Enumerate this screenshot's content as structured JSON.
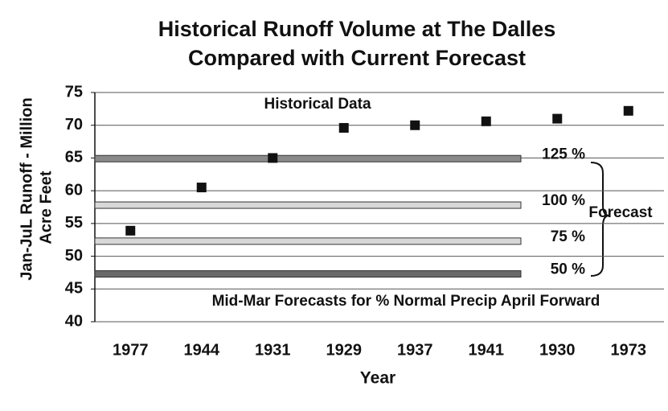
{
  "chart_data": {
    "type": "scatter",
    "title_lines": [
      "Historical Runoff Volume at The Dalles",
      "Compared with Current Forecast"
    ],
    "ylabel_lines": [
      "Jan-JuL Runoff - Million",
      "Acre Feet"
    ],
    "xlabel": "Year",
    "categories": [
      "1977",
      "1944",
      "1931",
      "1929",
      "1937",
      "1941",
      "1930",
      "1973"
    ],
    "values": [
      53.9,
      60.5,
      65.0,
      69.6,
      70.0,
      70.6,
      71.0,
      72.2
    ],
    "color": "#111111",
    "ylim": [
      40,
      75
    ],
    "yticks": [
      40,
      45,
      50,
      55,
      60,
      65,
      70,
      75
    ],
    "grid": true,
    "forecast_bands": [
      {
        "label": "125 %",
        "value": 64.9,
        "color": "#8a8a8a"
      },
      {
        "label": "100 %",
        "value": 57.8,
        "color": "#d8d8d8"
      },
      {
        "label": "75 %",
        "value": 52.3,
        "color": "#d8d8d8"
      },
      {
        "label": "50 %",
        "value": 47.3,
        "color": "#6a6a6a"
      }
    ],
    "annotations": [
      "Historical Data",
      "Forecast",
      "Mid-Mar Forecasts  for % Normal Precip April Forward"
    ]
  }
}
